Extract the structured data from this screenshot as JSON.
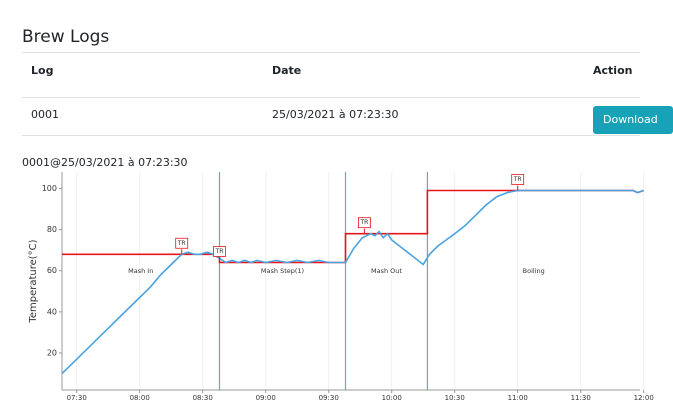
{
  "header": {
    "title": "Brew Logs"
  },
  "table": {
    "columns": [
      "Log",
      "Date",
      "Action"
    ],
    "rows": [
      [
        "0001",
        "25/03/2021 à 07:23:30",
        "Download"
      ]
    ]
  },
  "chart_data": {
    "type": "line",
    "title": "0001@25/03/2021 à 07:23:30",
    "y_label": "Temperature(°C)",
    "xlim": [
      "07:23",
      "12:00"
    ],
    "xticks": [
      "07:30",
      "08:00",
      "08:30",
      "09:00",
      "09:30",
      "10:00",
      "10:30",
      "11:00",
      "11:30",
      "12:00"
    ],
    "ylim": [
      2,
      108
    ],
    "yticks": [
      20,
      40,
      60,
      80,
      100
    ],
    "step_boundaries": [
      "08:38",
      "09:38",
      "10:17"
    ],
    "step_labels": [
      "Mash In",
      "Mash Step(1)",
      "Mash Out",
      "Boiling"
    ],
    "markers": [
      {
        "label": "TR",
        "x": "08:20",
        "y": 68
      },
      {
        "label": "TR",
        "x": "08:38",
        "y": 64
      },
      {
        "label": "TR",
        "x": "09:47",
        "y": 78
      },
      {
        "label": "TR",
        "x": "11:00",
        "y": 99
      }
    ],
    "series": [
      {
        "color": "#e8141b",
        "x": [
          "07:23",
          "08:38",
          "08:38",
          "09:38",
          "09:38",
          "10:17",
          "10:17",
          "11:55",
          "11:57",
          "12:00"
        ],
        "values": [
          68,
          68,
          64,
          64,
          78,
          78,
          99,
          99,
          98,
          99
        ]
      },
      {
        "color": "#4aa3df",
        "x": [
          "07:23",
          "07:26",
          "07:30",
          "07:35",
          "07:40",
          "07:45",
          "07:50",
          "07:55",
          "08:00",
          "08:05",
          "08:10",
          "08:15",
          "08:20",
          "08:23",
          "08:26",
          "08:29",
          "08:32",
          "08:35",
          "08:38",
          "08:41",
          "08:44",
          "08:47",
          "08:50",
          "08:53",
          "08:56",
          "09:00",
          "09:05",
          "09:10",
          "09:15",
          "09:20",
          "09:25",
          "09:30",
          "09:35",
          "09:38",
          "09:42",
          "09:46",
          "09:50",
          "09:52",
          "09:54",
          "09:56",
          "09:58",
          "10:00",
          "10:05",
          "10:10",
          "10:15",
          "10:18",
          "10:22",
          "10:26",
          "10:30",
          "10:35",
          "10:40",
          "10:45",
          "10:50",
          "10:55",
          "11:00",
          "11:30",
          "11:55",
          "11:57",
          "12:00"
        ],
        "values": [
          10,
          13,
          17,
          22,
          27,
          32,
          37,
          42,
          47,
          52,
          58,
          63,
          68,
          69,
          68,
          68,
          69,
          68,
          66,
          64,
          65,
          64,
          65,
          64,
          65,
          64,
          65,
          64,
          65,
          64,
          65,
          64,
          64,
          64,
          71,
          76,
          78,
          77,
          79,
          76,
          78,
          75,
          71,
          67,
          63,
          68,
          72,
          75,
          78,
          82,
          87,
          92,
          96,
          98,
          99,
          99,
          99,
          98,
          99
        ]
      }
    ]
  }
}
